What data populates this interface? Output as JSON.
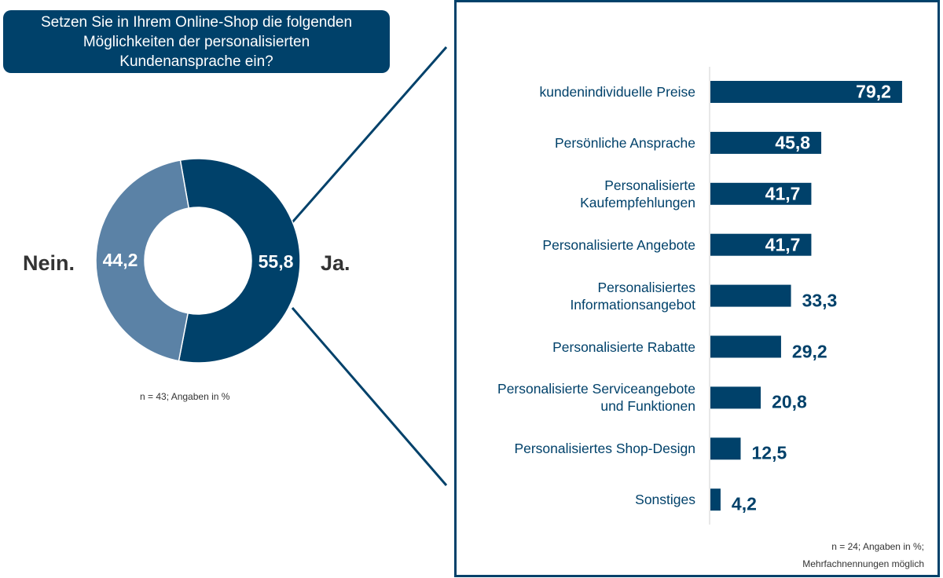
{
  "chart_data": [
    {
      "type": "donut",
      "title": "Setzen Sie in Ihrem Online-Shop die folgenden Möglichkeiten der personalisierten Kundenansprache ein?",
      "categories": [
        "Ja.",
        "Nein."
      ],
      "values": [
        55.8,
        44.2
      ],
      "value_labels": [
        "55,8",
        "44,2"
      ],
      "colors": [
        "#00416a",
        "#5b82a6"
      ],
      "note": "n = 43; Angaben in %"
    },
    {
      "type": "bar",
      "categories": [
        "kundenindividuelle Preise",
        "Persönliche Ansprache",
        "Personalisierte\nKaufempfehlungen",
        "Personalisierte Angebote",
        "Personalisiertes\nInformationsangebot",
        "Personalisierte Rabatte",
        "Personalisierte Serviceangebote\nund Funktionen",
        "Personalisiertes Shop-Design",
        "Sonstiges"
      ],
      "values": [
        79.2,
        45.8,
        41.7,
        41.7,
        33.3,
        29.2,
        20.8,
        12.5,
        4.2
      ],
      "value_labels": [
        "79,2",
        "45,8",
        "41,7",
        "41,7",
        "33,3",
        "29,2",
        "20,8",
        "12,5",
        "4,2"
      ],
      "color": "#00416a",
      "note": "n = 24; Angaben in %;\nMehrfachnennungen möglich"
    }
  ]
}
